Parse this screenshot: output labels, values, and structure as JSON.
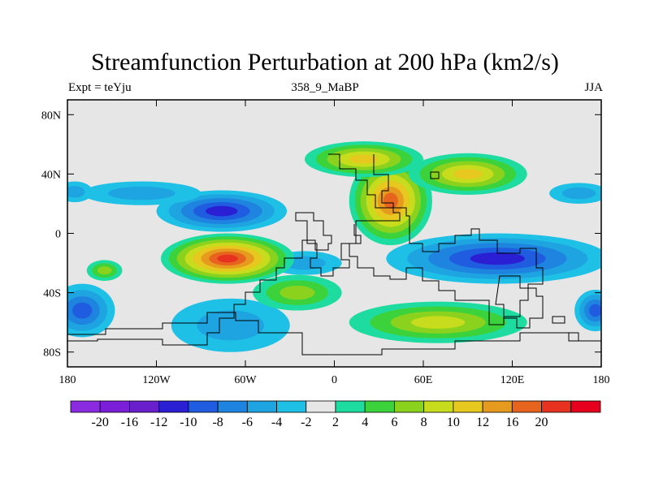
{
  "title": "Streamfunction Perturbation at 200 hPa (km2/s)",
  "left_label": "Expt = teYju",
  "center_label": "358_9_MaBP",
  "right_label": "JJA",
  "chart_data": {
    "type": "heatmap",
    "projection": "cylindrical-equidistant",
    "xlim": [
      -180,
      180
    ],
    "ylim": [
      -90,
      90
    ],
    "x_ticks": [
      {
        "value": -180,
        "label": "180"
      },
      {
        "value": -120,
        "label": "120W"
      },
      {
        "value": -60,
        "label": "60W"
      },
      {
        "value": 0,
        "label": "0"
      },
      {
        "value": 60,
        "label": "60E"
      },
      {
        "value": 120,
        "label": "120E"
      },
      {
        "value": 180,
        "label": "180"
      }
    ],
    "y_ticks": [
      {
        "value": 80,
        "label": "80N"
      },
      {
        "value": 40,
        "label": "40N"
      },
      {
        "value": 0,
        "label": "0"
      },
      {
        "value": -40,
        "label": "40S"
      },
      {
        "value": -80,
        "label": "80S"
      }
    ],
    "background_color": "#e6e6e6",
    "colorbar": {
      "colors": [
        "#8a2be2",
        "#7a1ed8",
        "#6a1fcc",
        "#2a1fd2",
        "#1f5ce0",
        "#1e84e0",
        "#1ea4e0",
        "#1ec0e6",
        "#e6e6e6",
        "#1edca0",
        "#3cd23c",
        "#8ad21e",
        "#c8dc1e",
        "#e6c81e",
        "#e69a1e",
        "#e6641e",
        "#e6321e",
        "#e6001e"
      ],
      "labels": [
        "-20",
        "-16",
        "-12",
        "-10",
        "-8",
        "-6",
        "-4",
        "-2",
        "2",
        "4",
        "6",
        "8",
        "10",
        "12",
        "16",
        "20"
      ]
    },
    "features": [
      {
        "kind": "low",
        "lon": -76,
        "lat": 15,
        "rx": 44,
        "ry": 14,
        "peak": -10
      },
      {
        "kind": "low",
        "lon": -130,
        "lat": 27,
        "rx": 40,
        "ry": 8,
        "peak": -4
      },
      {
        "kind": "low",
        "lon": -175,
        "lat": 28,
        "rx": 12,
        "ry": 7,
        "peak": -4
      },
      {
        "kind": "low",
        "lon": 165,
        "lat": 27,
        "rx": 20,
        "ry": 7,
        "peak": -4
      },
      {
        "kind": "low",
        "lon": 110,
        "lat": -17,
        "rx": 75,
        "ry": 17,
        "peak": -10
      },
      {
        "kind": "low",
        "lon": -20,
        "lat": -20,
        "rx": 25,
        "ry": 8,
        "peak": -4
      },
      {
        "kind": "low",
        "lon": -170,
        "lat": -52,
        "rx": 22,
        "ry": 18,
        "peak": -8
      },
      {
        "kind": "low",
        "lon": -70,
        "lat": -62,
        "rx": 40,
        "ry": 18,
        "peak": -4
      },
      {
        "kind": "low",
        "lon": 176,
        "lat": -52,
        "rx": 14,
        "ry": 14,
        "peak": -8
      },
      {
        "kind": "high",
        "lon": -72,
        "lat": -17,
        "rx": 45,
        "ry": 17,
        "peak": 20
      },
      {
        "kind": "high",
        "lon": 38,
        "lat": 22,
        "rx": 28,
        "ry": 30,
        "peak": 16
      },
      {
        "kind": "high",
        "lon": 20,
        "lat": 50,
        "rx": 40,
        "ry": 12,
        "peak": 10
      },
      {
        "kind": "high",
        "lon": 90,
        "lat": 40,
        "rx": 40,
        "ry": 14,
        "peak": 10
      },
      {
        "kind": "high",
        "lon": 70,
        "lat": -60,
        "rx": 60,
        "ry": 14,
        "peak": 8
      },
      {
        "kind": "high",
        "lon": -25,
        "lat": -40,
        "rx": 30,
        "ry": 12,
        "peak": 6
      },
      {
        "kind": "high",
        "lon": -155,
        "lat": -25,
        "rx": 12,
        "ry": 7,
        "peak": 6
      }
    ]
  }
}
